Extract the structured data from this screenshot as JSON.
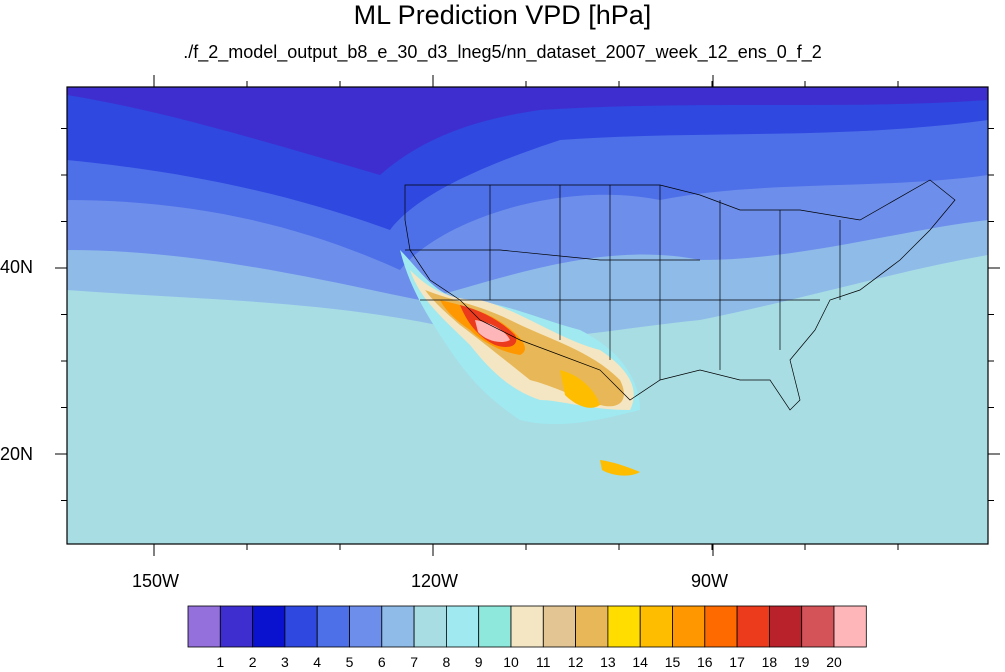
{
  "title": "ML Prediction VPD [hPa]",
  "subtitle": "./f_2_model_output_b8_e_30_d3_lneg5/nn_dataset_2007_week_12_ens_0_f_2",
  "map": {
    "lon_range": [
      -160,
      -62
    ],
    "lat_range": [
      10,
      59
    ],
    "x_ticks": [
      "150W",
      "120W",
      "90W"
    ],
    "y_ticks": [
      "40N",
      "20N"
    ]
  },
  "colorbar": {
    "labels": [
      "1",
      "2",
      "3",
      "4",
      "5",
      "6",
      "7",
      "8",
      "9",
      "10",
      "11",
      "12",
      "13",
      "14",
      "15",
      "16",
      "17",
      "18",
      "19",
      "20"
    ],
    "colors": [
      "#9370db",
      "#3f2ecf",
      "#0a12cf",
      "#2e48e0",
      "#4d6fe8",
      "#6d8eeb",
      "#8fbbe9",
      "#a8dde4",
      "#a0e9f0",
      "#8ee8dc",
      "#f4e6c2",
      "#e3c594",
      "#e8b858",
      "#ffdd00",
      "#ffbd00",
      "#ff9800",
      "#ff6a00",
      "#ec3a1c",
      "#b9222a",
      "#d45358",
      "#ffb6b9"
    ]
  }
}
